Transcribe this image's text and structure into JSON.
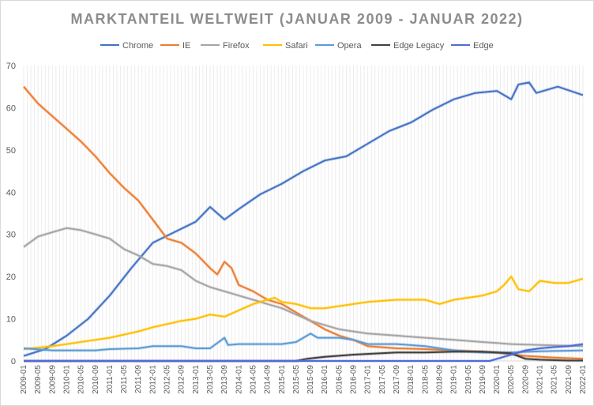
{
  "chart_data": {
    "type": "line",
    "title": "MARKTANTEIL WELTWEIT (JANUAR 2009 - JANUAR 2022)",
    "xlabel": "",
    "ylabel": "",
    "ylim": [
      0,
      70
    ],
    "yticks": [
      0,
      10,
      20,
      30,
      40,
      50,
      60,
      70
    ],
    "grid": "vertical per month",
    "legend_position": "top",
    "x_tick_labels": [
      "2009-01",
      "2009-05",
      "2009-09",
      "2010-01",
      "2010-05",
      "2010-09",
      "2011-01",
      "2011-05",
      "2011-09",
      "2012-01",
      "2012-05",
      "2012-09",
      "2013-01",
      "2013-05",
      "2013-09",
      "2014-01",
      "2014-05",
      "2014-09",
      "2015-01",
      "2015-05",
      "2015-09",
      "2016-01",
      "2016-05",
      "2016-09",
      "2017-01",
      "2017-05",
      "2017-09",
      "2018-01",
      "2018-05",
      "2018-09",
      "2019-01",
      "2019-05",
      "2019-09",
      "2020-01",
      "2020-05",
      "2020-09",
      "2021-01",
      "2021-05",
      "2021-09",
      "2022-01"
    ],
    "series": [
      {
        "name": "Chrome",
        "color": "#4472c4",
        "points": [
          [
            "2009-01",
            1.2
          ],
          [
            "2009-07",
            2.8
          ],
          [
            "2010-01",
            6.0
          ],
          [
            "2010-07",
            10.0
          ],
          [
            "2011-01",
            15.5
          ],
          [
            "2011-07",
            22.0
          ],
          [
            "2012-01",
            28.0
          ],
          [
            "2012-07",
            30.5
          ],
          [
            "2013-01",
            33.0
          ],
          [
            "2013-05",
            36.5
          ],
          [
            "2013-09",
            33.5
          ],
          [
            "2014-01",
            36.0
          ],
          [
            "2014-07",
            39.5
          ],
          [
            "2015-01",
            42.0
          ],
          [
            "2015-07",
            45.0
          ],
          [
            "2016-01",
            47.5
          ],
          [
            "2016-07",
            48.5
          ],
          [
            "2017-01",
            51.5
          ],
          [
            "2017-07",
            54.5
          ],
          [
            "2018-01",
            56.5
          ],
          [
            "2018-07",
            59.5
          ],
          [
            "2019-01",
            62.0
          ],
          [
            "2019-07",
            63.5
          ],
          [
            "2020-01",
            64.0
          ],
          [
            "2020-05",
            62.0
          ],
          [
            "2020-07",
            65.5
          ],
          [
            "2020-10",
            66.0
          ],
          [
            "2020-12",
            63.5
          ],
          [
            "2021-06",
            65.0
          ],
          [
            "2022-01",
            63.0
          ]
        ]
      },
      {
        "name": "IE",
        "color": "#ed7d31",
        "points": [
          [
            "2009-01",
            65.0
          ],
          [
            "2009-05",
            61.0
          ],
          [
            "2009-09",
            58.0
          ],
          [
            "2010-01",
            55.0
          ],
          [
            "2010-05",
            52.0
          ],
          [
            "2010-09",
            48.5
          ],
          [
            "2011-01",
            44.5
          ],
          [
            "2011-05",
            41.0
          ],
          [
            "2011-09",
            38.0
          ],
          [
            "2012-01",
            33.5
          ],
          [
            "2012-05",
            29.0
          ],
          [
            "2012-09",
            28.0
          ],
          [
            "2013-01",
            25.5
          ],
          [
            "2013-05",
            22.0
          ],
          [
            "2013-07",
            20.5
          ],
          [
            "2013-09",
            23.5
          ],
          [
            "2013-11",
            22.0
          ],
          [
            "2014-01",
            18.0
          ],
          [
            "2014-05",
            16.5
          ],
          [
            "2014-09",
            14.5
          ],
          [
            "2015-01",
            13.5
          ],
          [
            "2015-05",
            11.5
          ],
          [
            "2015-09",
            9.5
          ],
          [
            "2016-01",
            7.5
          ],
          [
            "2016-05",
            6.0
          ],
          [
            "2016-09",
            5.0
          ],
          [
            "2017-01",
            3.5
          ],
          [
            "2017-09",
            3.0
          ],
          [
            "2018-05",
            2.8
          ],
          [
            "2019-01",
            2.5
          ],
          [
            "2020-01",
            2.0
          ],
          [
            "2020-09",
            1.2
          ],
          [
            "2021-05",
            0.8
          ],
          [
            "2022-01",
            0.5
          ]
        ]
      },
      {
        "name": "Firefox",
        "color": "#a5a5a5",
        "points": [
          [
            "2009-01",
            27.0
          ],
          [
            "2009-05",
            29.5
          ],
          [
            "2009-09",
            30.5
          ],
          [
            "2010-01",
            31.5
          ],
          [
            "2010-05",
            31.0
          ],
          [
            "2010-09",
            30.0
          ],
          [
            "2011-01",
            29.0
          ],
          [
            "2011-05",
            26.5
          ],
          [
            "2011-09",
            25.0
          ],
          [
            "2012-01",
            23.0
          ],
          [
            "2012-05",
            22.5
          ],
          [
            "2012-09",
            21.5
          ],
          [
            "2013-01",
            19.0
          ],
          [
            "2013-05",
            17.5
          ],
          [
            "2013-09",
            16.5
          ],
          [
            "2014-01",
            15.5
          ],
          [
            "2014-05",
            14.5
          ],
          [
            "2014-09",
            13.5
          ],
          [
            "2015-01",
            12.5
          ],
          [
            "2015-05",
            11.0
          ],
          [
            "2015-09",
            9.5
          ],
          [
            "2016-01",
            8.5
          ],
          [
            "2016-05",
            7.5
          ],
          [
            "2016-09",
            7.0
          ],
          [
            "2017-01",
            6.5
          ],
          [
            "2017-09",
            6.0
          ],
          [
            "2018-05",
            5.5
          ],
          [
            "2019-01",
            5.0
          ],
          [
            "2019-09",
            4.5
          ],
          [
            "2020-05",
            4.0
          ],
          [
            "2021-01",
            3.8
          ],
          [
            "2022-01",
            3.5
          ]
        ]
      },
      {
        "name": "Safari",
        "color": "#ffc000",
        "points": [
          [
            "2009-01",
            2.8
          ],
          [
            "2009-09",
            3.5
          ],
          [
            "2010-01",
            4.0
          ],
          [
            "2010-09",
            5.0
          ],
          [
            "2011-01",
            5.5
          ],
          [
            "2011-09",
            7.0
          ],
          [
            "2012-01",
            8.0
          ],
          [
            "2012-09",
            9.5
          ],
          [
            "2013-01",
            10.0
          ],
          [
            "2013-05",
            11.0
          ],
          [
            "2013-09",
            10.5
          ],
          [
            "2014-01",
            12.0
          ],
          [
            "2014-05",
            13.5
          ],
          [
            "2014-09",
            14.5
          ],
          [
            "2014-11",
            15.0
          ],
          [
            "2015-01",
            14.0
          ],
          [
            "2015-05",
            13.5
          ],
          [
            "2015-09",
            12.5
          ],
          [
            "2016-01",
            12.5
          ],
          [
            "2016-09",
            13.5
          ],
          [
            "2017-01",
            14.0
          ],
          [
            "2017-09",
            14.5
          ],
          [
            "2018-05",
            14.5
          ],
          [
            "2018-09",
            13.5
          ],
          [
            "2019-01",
            14.5
          ],
          [
            "2019-09",
            15.5
          ],
          [
            "2020-01",
            16.5
          ],
          [
            "2020-03",
            18.0
          ],
          [
            "2020-05",
            20.0
          ],
          [
            "2020-07",
            17.0
          ],
          [
            "2020-10",
            16.5
          ],
          [
            "2021-01",
            19.0
          ],
          [
            "2021-05",
            18.5
          ],
          [
            "2021-09",
            18.5
          ],
          [
            "2022-01",
            19.5
          ]
        ]
      },
      {
        "name": "Opera",
        "color": "#5b9bd5",
        "points": [
          [
            "2009-01",
            3.0
          ],
          [
            "2009-09",
            2.5
          ],
          [
            "2010-01",
            2.5
          ],
          [
            "2010-09",
            2.5
          ],
          [
            "2011-01",
            2.8
          ],
          [
            "2011-09",
            3.0
          ],
          [
            "2012-01",
            3.5
          ],
          [
            "2012-09",
            3.5
          ],
          [
            "2013-01",
            3.0
          ],
          [
            "2013-05",
            3.0
          ],
          [
            "2013-09",
            5.5
          ],
          [
            "2013-10",
            3.8
          ],
          [
            "2014-01",
            4.0
          ],
          [
            "2014-09",
            4.0
          ],
          [
            "2015-01",
            4.0
          ],
          [
            "2015-05",
            4.5
          ],
          [
            "2015-09",
            6.5
          ],
          [
            "2015-11",
            5.5
          ],
          [
            "2016-05",
            5.5
          ],
          [
            "2016-09",
            5.0
          ],
          [
            "2017-01",
            4.0
          ],
          [
            "2017-09",
            4.0
          ],
          [
            "2018-05",
            3.5
          ],
          [
            "2019-01",
            2.5
          ],
          [
            "2019-09",
            2.0
          ],
          [
            "2020-05",
            2.0
          ],
          [
            "2021-01",
            2.3
          ],
          [
            "2022-01",
            2.5
          ]
        ]
      },
      {
        "name": "Edge Legacy",
        "color": "#404040",
        "points": [
          [
            "2009-01",
            0.0
          ],
          [
            "2015-05",
            0.0
          ],
          [
            "2015-08",
            0.5
          ],
          [
            "2016-01",
            1.0
          ],
          [
            "2016-09",
            1.5
          ],
          [
            "2017-09",
            2.0
          ],
          [
            "2018-05",
            2.0
          ],
          [
            "2019-01",
            2.2
          ],
          [
            "2019-09",
            2.2
          ],
          [
            "2020-05",
            1.8
          ],
          [
            "2020-09",
            0.5
          ],
          [
            "2021-01",
            0.3
          ],
          [
            "2021-09",
            0.1
          ],
          [
            "2022-01",
            0.1
          ]
        ]
      },
      {
        "name": "Edge",
        "color": "#4f6bd8",
        "points": [
          [
            "2009-01",
            0.0
          ],
          [
            "2019-11",
            0.0
          ],
          [
            "2020-01",
            0.5
          ],
          [
            "2020-05",
            1.5
          ],
          [
            "2020-09",
            2.5
          ],
          [
            "2021-01",
            3.0
          ],
          [
            "2021-05",
            3.3
          ],
          [
            "2021-09",
            3.5
          ],
          [
            "2022-01",
            4.0
          ]
        ]
      }
    ]
  }
}
